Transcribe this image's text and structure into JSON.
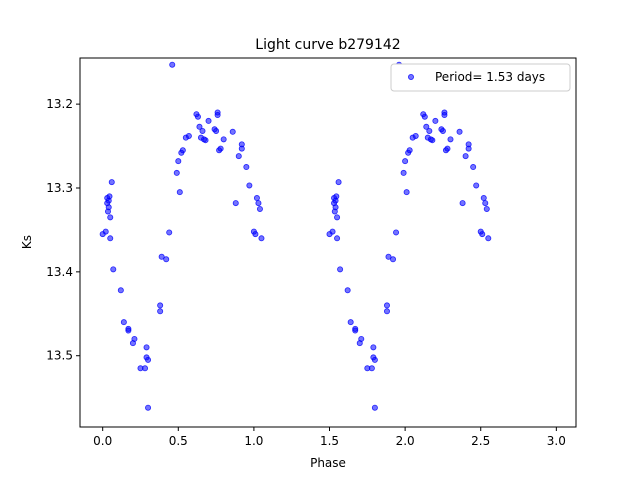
{
  "chart_data": {
    "type": "scatter",
    "title": "Light curve b279142",
    "xlabel": "Phase",
    "ylabel": "Ks",
    "xlim": [
      -0.15,
      3.13
    ],
    "ylim": [
      13.585,
      13.145
    ],
    "y_inverted": true,
    "x_ticks": [
      0.0,
      0.5,
      1.0,
      1.5,
      2.0,
      2.5,
      3.0
    ],
    "x_tick_labels": [
      "0.0",
      "0.5",
      "1.0",
      "1.5",
      "2.0",
      "2.5",
      "3.0"
    ],
    "y_ticks": [
      13.2,
      13.3,
      13.4,
      13.5
    ],
    "y_tick_labels": [
      "13.2",
      "13.3",
      "13.4",
      "13.5"
    ],
    "grid": false,
    "legend": {
      "placement": "top-right",
      "entries": [
        "Period= 1.53 days"
      ]
    },
    "marker_color": "#0000ff",
    "marker_alpha": 0.55,
    "series": [
      {
        "name": "Period= 1.53 days",
        "x": [
          0.0,
          0.02,
          0.03,
          0.03,
          0.035,
          0.04,
          0.04,
          0.045,
          0.05,
          0.05,
          0.06,
          0.07,
          0.12,
          0.14,
          0.17,
          0.17,
          0.2,
          0.21,
          0.25,
          0.28,
          0.29,
          0.29,
          0.3,
          0.3,
          0.38,
          0.38,
          0.39,
          0.42,
          0.44,
          0.46,
          0.49,
          0.5,
          0.51,
          0.52,
          0.53,
          0.55,
          0.57,
          0.62,
          0.63,
          0.64,
          0.65,
          0.66,
          0.67,
          0.68,
          0.7,
          0.74,
          0.75,
          0.76,
          0.76,
          0.77,
          0.78,
          0.8,
          0.86,
          0.88,
          0.9,
          0.92,
          0.92,
          0.95,
          0.97,
          1.0,
          1.01,
          1.02,
          1.03,
          1.04,
          1.05
        ],
        "y": [
          13.355,
          13.352,
          13.318,
          13.312,
          13.328,
          13.323,
          13.315,
          13.31,
          13.335,
          13.36,
          13.293,
          13.397,
          13.422,
          13.46,
          13.468,
          13.47,
          13.485,
          13.48,
          13.515,
          13.515,
          13.49,
          13.502,
          13.505,
          13.562,
          13.44,
          13.447,
          13.382,
          13.385,
          13.353,
          13.153,
          13.282,
          13.268,
          13.305,
          13.258,
          13.255,
          13.24,
          13.238,
          13.212,
          13.215,
          13.227,
          13.24,
          13.232,
          13.242,
          13.243,
          13.22,
          13.23,
          13.232,
          13.213,
          13.21,
          13.255,
          13.253,
          13.242,
          13.233,
          13.318,
          13.262,
          13.253,
          13.248,
          13.275,
          13.297,
          13.352,
          13.355,
          13.312,
          13.318,
          13.325,
          13.36
        ]
      }
    ]
  }
}
